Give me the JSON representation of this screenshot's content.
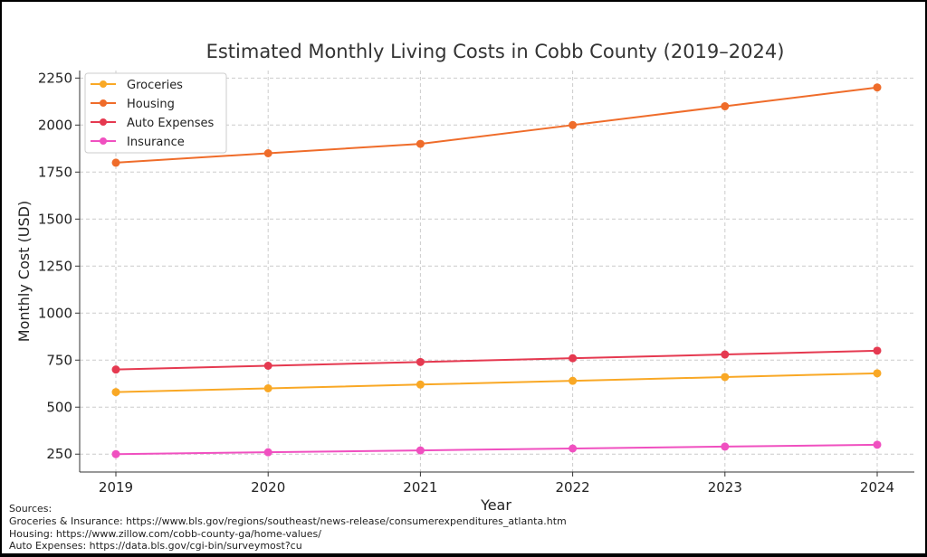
{
  "chart_data": {
    "type": "line",
    "title": "Estimated Monthly Living Costs in Cobb County (2019–2024)",
    "xlabel": "Year",
    "ylabel": "Monthly Cost (USD)",
    "x": [
      "2019",
      "2020",
      "2021",
      "2022",
      "2023",
      "2024"
    ],
    "yticks": [
      250,
      500,
      750,
      1000,
      1250,
      1500,
      1750,
      2000,
      2250
    ],
    "ylim": [
      155,
      2290
    ],
    "grid": true,
    "legend_position": "top-left",
    "series": [
      {
        "name": "Groceries",
        "color": "#f9a825",
        "values": [
          580,
          600,
          620,
          640,
          660,
          680
        ]
      },
      {
        "name": "Housing",
        "color": "#ef6c2a",
        "values": [
          1800,
          1850,
          1900,
          2000,
          2100,
          2200
        ]
      },
      {
        "name": "Auto Expenses",
        "color": "#e53950",
        "values": [
          700,
          720,
          740,
          760,
          780,
          800
        ]
      },
      {
        "name": "Insurance",
        "color": "#f050c0",
        "values": [
          250,
          260,
          270,
          280,
          290,
          300
        ]
      }
    ]
  },
  "sources": {
    "heading": "Sources:",
    "lines": [
      "Groceries & Insurance: https://www.bls.gov/regions/southeast/news-release/consumerexpenditures_atlanta.htm",
      "Housing: https://www.zillow.com/cobb-county-ga/home-values/",
      "Auto Expenses: https://data.bls.gov/cgi-bin/surveymost?cu"
    ]
  }
}
